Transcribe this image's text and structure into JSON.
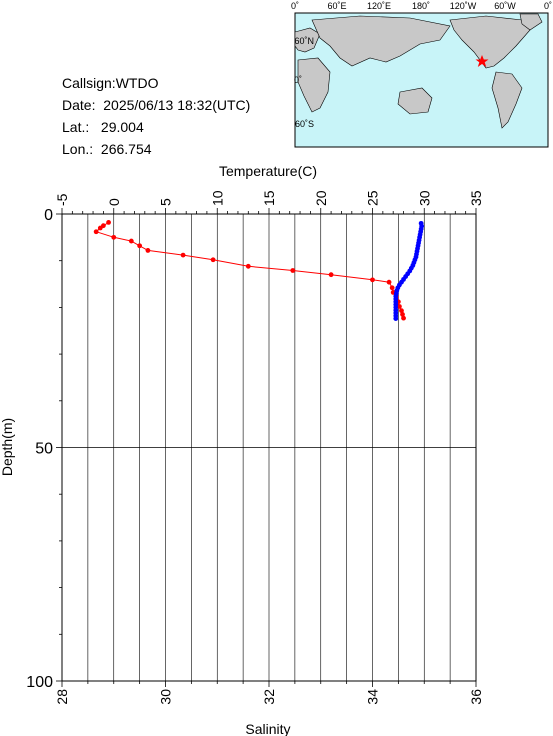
{
  "info": {
    "callsign": "Callsign:WTDO",
    "date": "Date:  2025/06/13 18:32(UTC)",
    "lat": "Lat.:   29.004",
    "lon": "Lon.:  266.754"
  },
  "map": {
    "top_ticks": [
      "0˚",
      "60˚E",
      "120˚E",
      "180˚",
      "120˚W",
      "60˚W",
      "0˚"
    ],
    "left_ticks": [
      "60˚N",
      "0˚",
      "60˚S"
    ],
    "colors": {
      "ocean": "#c8f4f8",
      "land": "#c8c8c8",
      "marker": "#ff0000"
    }
  },
  "chart_data": {
    "type": "line",
    "xlabel_top": "Temperature(C)",
    "xlabel_bottom": "Salinity",
    "ylabel": "Depth(m)",
    "temperature_axis": {
      "range": [
        -5,
        35
      ],
      "ticks": [
        "-5",
        "0",
        "5",
        "10",
        "15",
        "20",
        "25",
        "30",
        "35"
      ]
    },
    "salinity_axis": {
      "range": [
        28,
        36
      ],
      "ticks": [
        "28",
        "30",
        "32",
        "34",
        "36"
      ]
    },
    "depth_axis": {
      "range": [
        0,
        100
      ],
      "ticks": [
        "0",
        "50",
        "100"
      ]
    },
    "grid": true,
    "series": [
      {
        "axis": "temperature",
        "color": "#ff0000",
        "points": [
          {
            "x": -0.5,
            "y": 1.8
          },
          {
            "x": -1.0,
            "y": 2.5
          },
          {
            "x": -1.3,
            "y": 3.0
          },
          {
            "x": -1.7,
            "y": 3.8
          },
          {
            "x": 0.0,
            "y": 5.0
          },
          {
            "x": 1.7,
            "y": 5.8
          },
          {
            "x": 2.5,
            "y": 6.8
          },
          {
            "x": 3.3,
            "y": 7.8
          },
          {
            "x": 6.7,
            "y": 8.8
          },
          {
            "x": 9.6,
            "y": 9.8
          },
          {
            "x": 13.0,
            "y": 11.2
          },
          {
            "x": 17.3,
            "y": 12.1
          },
          {
            "x": 21.0,
            "y": 13.0
          },
          {
            "x": 25.0,
            "y": 14.1
          },
          {
            "x": 26.6,
            "y": 14.6
          },
          {
            "x": 26.9,
            "y": 15.8
          },
          {
            "x": 27.0,
            "y": 16.8
          },
          {
            "x": 27.3,
            "y": 17.8
          },
          {
            "x": 27.5,
            "y": 18.8
          },
          {
            "x": 27.6,
            "y": 19.8
          },
          {
            "x": 27.8,
            "y": 20.7
          },
          {
            "x": 27.9,
            "y": 21.5
          },
          {
            "x": 28.0,
            "y": 22.3
          }
        ]
      },
      {
        "axis": "salinity",
        "color": "#0000ff",
        "points": [
          {
            "x": 34.94,
            "y": 2.0
          },
          {
            "x": 34.95,
            "y": 2.6
          },
          {
            "x": 34.94,
            "y": 3.2
          },
          {
            "x": 34.93,
            "y": 3.8
          },
          {
            "x": 34.92,
            "y": 4.4
          },
          {
            "x": 34.91,
            "y": 5.0
          },
          {
            "x": 34.9,
            "y": 5.6
          },
          {
            "x": 34.89,
            "y": 6.2
          },
          {
            "x": 34.88,
            "y": 6.8
          },
          {
            "x": 34.87,
            "y": 7.4
          },
          {
            "x": 34.86,
            "y": 8.0
          },
          {
            "x": 34.85,
            "y": 8.6
          },
          {
            "x": 34.84,
            "y": 9.2
          },
          {
            "x": 34.82,
            "y": 9.8
          },
          {
            "x": 34.8,
            "y": 10.4
          },
          {
            "x": 34.78,
            "y": 11.0
          },
          {
            "x": 34.75,
            "y": 11.6
          },
          {
            "x": 34.72,
            "y": 12.2
          },
          {
            "x": 34.68,
            "y": 12.8
          },
          {
            "x": 34.64,
            "y": 13.4
          },
          {
            "x": 34.6,
            "y": 14.0
          },
          {
            "x": 34.56,
            "y": 14.6
          },
          {
            "x": 34.52,
            "y": 15.2
          },
          {
            "x": 34.49,
            "y": 15.8
          },
          {
            "x": 34.47,
            "y": 16.4
          },
          {
            "x": 34.46,
            "y": 17.0
          },
          {
            "x": 34.45,
            "y": 17.6
          },
          {
            "x": 34.45,
            "y": 18.2
          },
          {
            "x": 34.45,
            "y": 18.8
          },
          {
            "x": 34.45,
            "y": 19.4
          },
          {
            "x": 34.45,
            "y": 20.0
          },
          {
            "x": 34.45,
            "y": 20.6
          },
          {
            "x": 34.45,
            "y": 21.2
          },
          {
            "x": 34.45,
            "y": 21.8
          },
          {
            "x": 34.45,
            "y": 22.4
          }
        ]
      }
    ]
  }
}
